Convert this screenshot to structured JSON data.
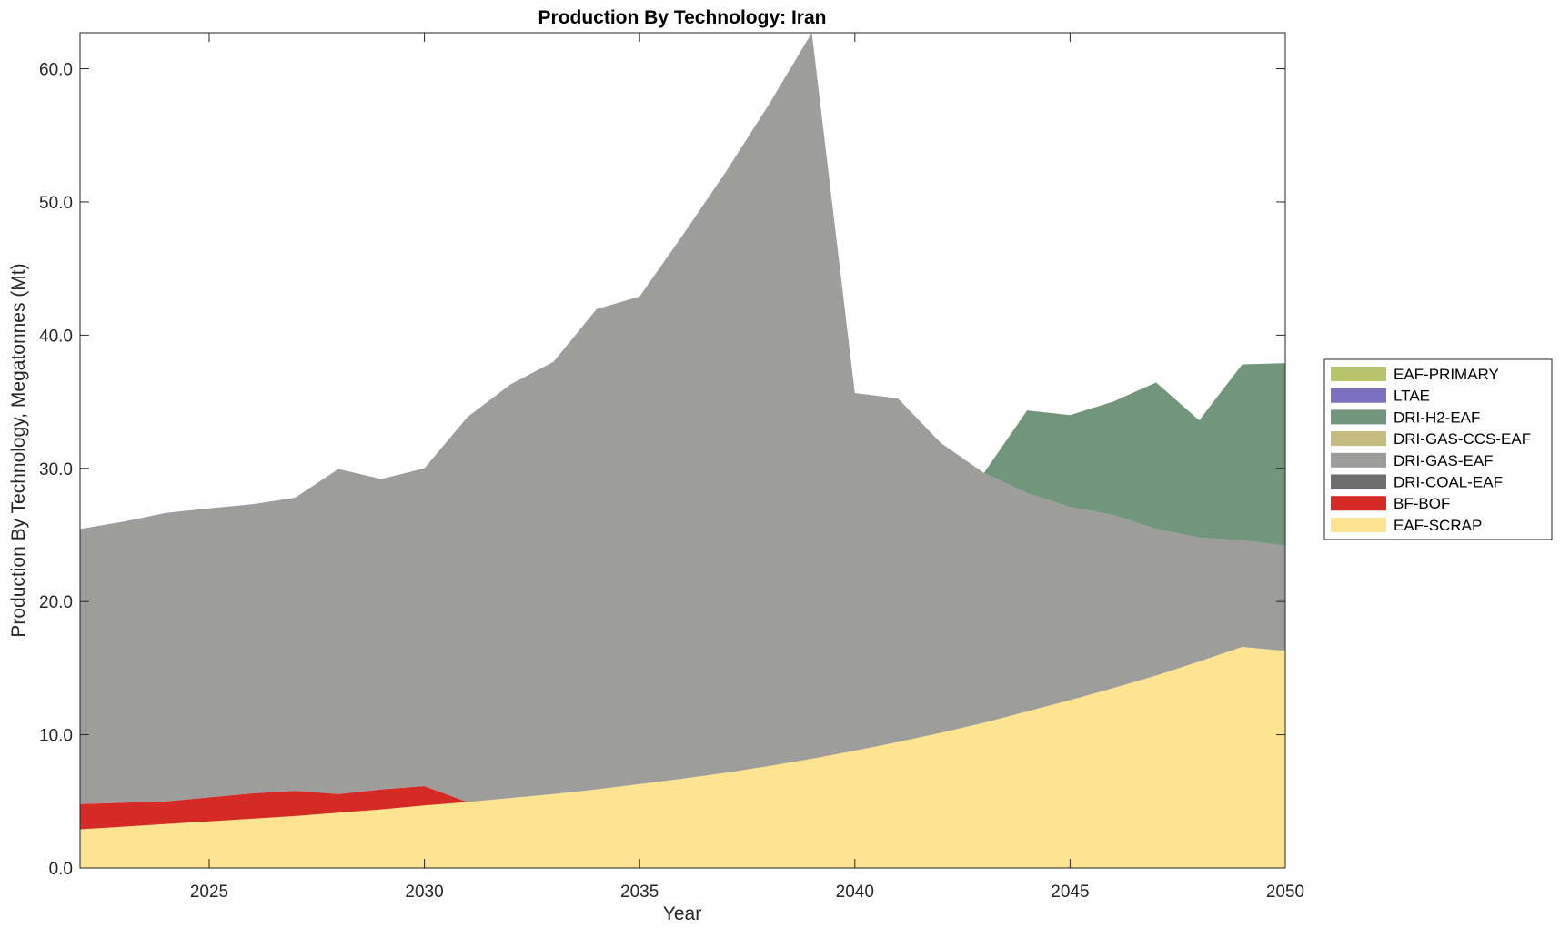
{
  "chart_data": {
    "type": "area",
    "stacked": true,
    "title": "Production By Technology: Iran",
    "xlabel": "Year",
    "ylabel": "Production By Technology, Megatonnes (Mt)",
    "xlim": [
      2022,
      2050
    ],
    "ylim": [
      0,
      62.7
    ],
    "x": [
      2022,
      2023,
      2024,
      2025,
      2026,
      2027,
      2028,
      2029,
      2030,
      2031,
      2032,
      2033,
      2034,
      2035,
      2036,
      2037,
      2038,
      2039,
      2040,
      2041,
      2042,
      2043,
      2044,
      2045,
      2046,
      2047,
      2048,
      2049,
      2050
    ],
    "xticks": [
      2025,
      2030,
      2035,
      2040,
      2045,
      2050
    ],
    "xtick_labels": [
      "2025",
      "2030",
      "2035",
      "2040",
      "2045",
      "2050"
    ],
    "yticks": [
      0,
      10,
      20,
      30,
      40,
      50,
      60
    ],
    "ytick_labels": [
      "0.0",
      "10.0",
      "20.0",
      "30.0",
      "40.0",
      "50.0",
      "60.0"
    ],
    "grid": false,
    "legend_position": "right",
    "series": [
      {
        "name": "EAF-SCRAP",
        "color": "#fee391",
        "values": [
          2.9,
          3.1,
          3.3,
          3.5,
          3.7,
          3.9,
          4.15,
          4.4,
          4.7,
          4.95,
          5.25,
          5.55,
          5.9,
          6.3,
          6.7,
          7.15,
          7.65,
          8.2,
          8.8,
          9.45,
          10.15,
          10.9,
          11.75,
          12.6,
          13.5,
          14.45,
          15.5,
          16.6,
          16.3
        ]
      },
      {
        "name": "BF-BOF",
        "color": "#d62a24",
        "values": [
          1.9,
          1.8,
          1.7,
          1.8,
          1.9,
          1.9,
          1.4,
          1.5,
          1.45,
          0,
          0,
          0,
          0,
          0,
          0,
          0,
          0,
          0,
          0,
          0,
          0,
          0,
          0,
          0,
          0,
          0,
          0,
          0,
          0
        ]
      },
      {
        "name": "DRI-COAL-EAF",
        "color": "#6e6e6e",
        "values": [
          0,
          0,
          0,
          0,
          0,
          0,
          0,
          0,
          0,
          0,
          0,
          0,
          0,
          0,
          0,
          0,
          0,
          0,
          0,
          0,
          0,
          0,
          0,
          0,
          0,
          0,
          0,
          0,
          0
        ]
      },
      {
        "name": "DRI-GAS-EAF",
        "color": "#9d9d9b",
        "values": [
          20.65,
          21.1,
          21.65,
          21.7,
          21.7,
          22.0,
          24.4,
          23.3,
          23.85,
          28.9,
          31.05,
          32.45,
          36.05,
          36.6,
          40.8,
          45.1,
          49.65,
          54.5,
          26.85,
          25.8,
          21.75,
          18.75,
          16.4,
          14.5,
          13.0,
          11.0,
          9.3,
          8.0,
          7.9
        ]
      },
      {
        "name": "DRI-GAS-CCS-EAF",
        "color": "#c3bc7e",
        "values": [
          0,
          0,
          0,
          0,
          0,
          0,
          0,
          0,
          0,
          0,
          0,
          0,
          0,
          0,
          0,
          0,
          0,
          0,
          0,
          0,
          0,
          0,
          0,
          0,
          0,
          0,
          0,
          0,
          0
        ]
      },
      {
        "name": "DRI-H2-EAF",
        "color": "#72967b",
        "values": [
          0,
          0,
          0,
          0,
          0,
          0,
          0,
          0,
          0,
          0,
          0,
          0,
          0,
          0,
          0,
          0,
          0,
          0,
          0,
          0,
          0,
          0,
          6.2,
          6.9,
          8.5,
          11.0,
          8.8,
          13.2,
          13.7
        ]
      },
      {
        "name": "LTAE",
        "color": "#7b6fc0",
        "values": [
          0,
          0,
          0,
          0,
          0,
          0,
          0,
          0,
          0,
          0,
          0,
          0,
          0,
          0,
          0,
          0,
          0,
          0,
          0,
          0,
          0,
          0,
          0,
          0,
          0,
          0,
          0,
          0,
          0
        ]
      },
      {
        "name": "EAF-PRIMARY",
        "color": "#b7c46c",
        "values": [
          0,
          0,
          0,
          0,
          0,
          0,
          0,
          0,
          0,
          0,
          0,
          0,
          0,
          0,
          0,
          0,
          0,
          0,
          0,
          0,
          0,
          0,
          0,
          0,
          0,
          0,
          0,
          0,
          0
        ]
      }
    ],
    "legend_order": [
      "EAF-PRIMARY",
      "LTAE",
      "DRI-H2-EAF",
      "DRI-GAS-CCS-EAF",
      "DRI-GAS-EAF",
      "DRI-COAL-EAF",
      "BF-BOF",
      "EAF-SCRAP"
    ]
  }
}
